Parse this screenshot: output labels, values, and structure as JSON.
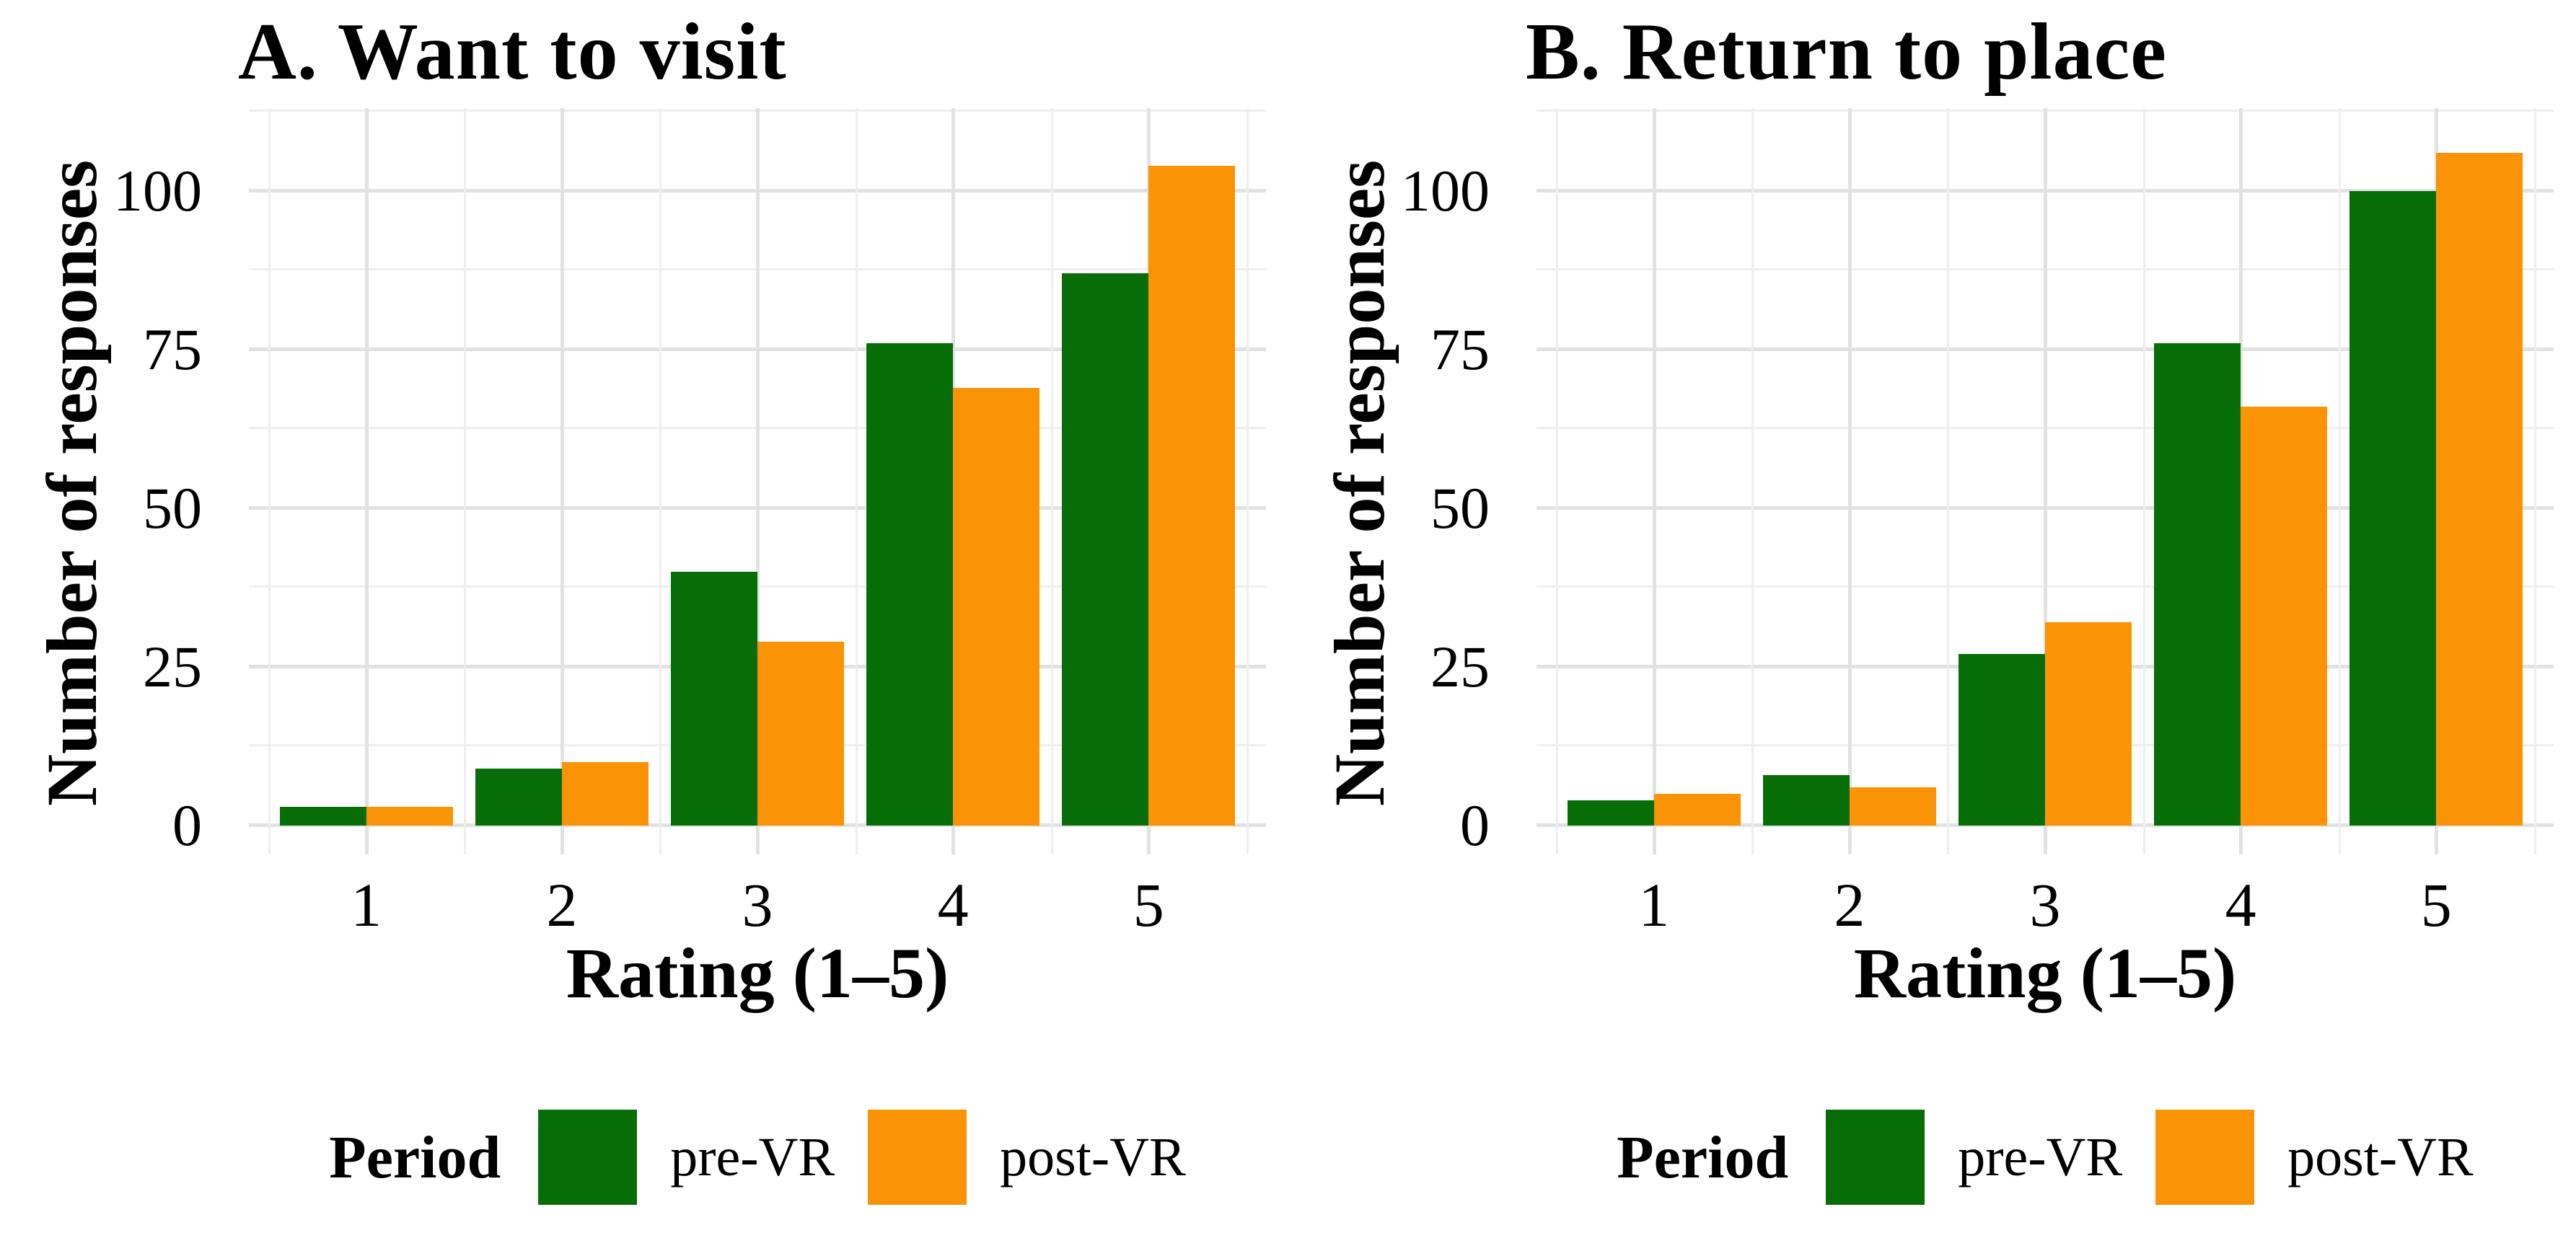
{
  "page": {
    "background": "#ffffff"
  },
  "colors": {
    "pre": "#076e07",
    "post": "#fb9307",
    "grid_major": "#e2e2e2",
    "grid_minor": "#efefef",
    "text": "#000000"
  },
  "legend": {
    "title": "Period",
    "items": [
      {
        "label": "pre-VR",
        "color": "#076e07"
      },
      {
        "label": "post-VR",
        "color": "#fb9307"
      }
    ]
  },
  "chart_data": [
    {
      "type": "bar",
      "title": "A. Want to visit",
      "xlabel": "Rating (1–5)",
      "ylabel": "Number of responses",
      "categories": [
        "1",
        "2",
        "3",
        "4",
        "5"
      ],
      "yticks": [
        0,
        25,
        50,
        75,
        100
      ],
      "ylim": [
        0,
        113
      ],
      "grid": "on",
      "legend_position": "bottom",
      "series": [
        {
          "name": "pre-VR",
          "values": [
            3,
            9,
            40,
            76,
            87
          ]
        },
        {
          "name": "post-VR",
          "values": [
            3,
            10,
            29,
            69,
            104
          ]
        }
      ]
    },
    {
      "type": "bar",
      "title": "B. Return to place",
      "xlabel": "Rating (1–5)",
      "ylabel": "Number of responses",
      "categories": [
        "1",
        "2",
        "3",
        "4",
        "5"
      ],
      "yticks": [
        0,
        25,
        50,
        75,
        100
      ],
      "ylim": [
        0,
        113
      ],
      "grid": "on",
      "legend_position": "bottom",
      "series": [
        {
          "name": "pre-VR",
          "values": [
            4,
            8,
            27,
            76,
            100
          ]
        },
        {
          "name": "post-VR",
          "values": [
            5,
            6,
            32,
            66,
            106
          ]
        }
      ]
    }
  ]
}
